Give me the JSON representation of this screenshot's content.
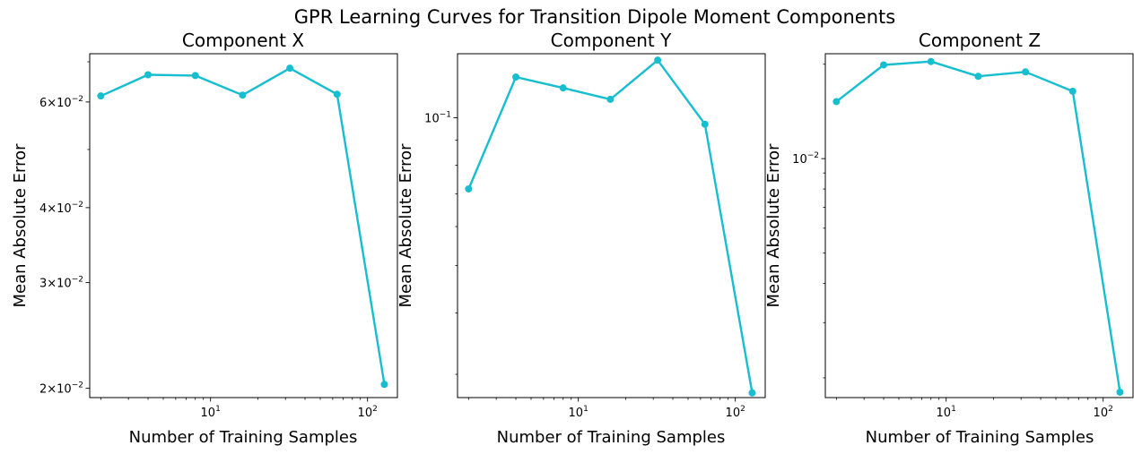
{
  "figure": {
    "title": "GPR Learning Curves for Transition Dipole Moment Components",
    "color": "#17becf"
  },
  "chart_data": [
    {
      "type": "line",
      "title": "Component X",
      "xlabel": "Number of Training Samples",
      "ylabel": "Mean Absolute Error",
      "xscale": "log",
      "yscale": "log",
      "grid": false,
      "legend": "none",
      "xlim": [
        1.7,
        155
      ],
      "ylim": [
        0.0193,
        0.0722
      ],
      "x_ticks": [
        {
          "value": 10,
          "base": "10",
          "exp": "1"
        },
        {
          "value": 100,
          "base": "10",
          "exp": "2"
        }
      ],
      "y_ticks": [
        {
          "value": 0.02,
          "mant": "2",
          "base": "10",
          "exp": "−2"
        },
        {
          "value": 0.03,
          "mant": "3",
          "base": "10",
          "exp": "−2"
        },
        {
          "value": 0.04,
          "mant": "4",
          "base": "10",
          "exp": "−2"
        },
        {
          "value": 0.06,
          "mant": "6",
          "base": "10",
          "exp": "−2"
        }
      ],
      "series": [
        {
          "x": [
            2,
            4,
            8,
            16,
            32,
            64,
            128
          ],
          "y": [
            0.0614,
            0.0666,
            0.0664,
            0.0616,
            0.0683,
            0.0618,
            0.0203
          ]
        }
      ]
    },
    {
      "type": "line",
      "title": "Component Y",
      "xlabel": "Number of Training Samples",
      "ylabel": "Mean Absolute Error",
      "xscale": "log",
      "yscale": "log",
      "grid": false,
      "legend": "none",
      "xlim": [
        1.7,
        155
      ],
      "ylim": [
        0.0269,
        0.135
      ],
      "x_ticks": [
        {
          "value": 10,
          "base": "10",
          "exp": "1"
        },
        {
          "value": 100,
          "base": "10",
          "exp": "2"
        }
      ],
      "y_ticks": [
        {
          "value": 0.1,
          "mant": "",
          "base": "10",
          "exp": "−1"
        }
      ],
      "series": [
        {
          "x": [
            2,
            4,
            8,
            16,
            32,
            64,
            128
          ],
          "y": [
            0.0716,
            0.121,
            0.115,
            0.109,
            0.131,
            0.097,
            0.0275
          ]
        }
      ]
    },
    {
      "type": "line",
      "title": "Component Z",
      "xlabel": "Number of Training Samples",
      "ylabel": "Mean Absolute Error",
      "xscale": "log",
      "yscale": "log",
      "grid": false,
      "legend": "none",
      "xlim": [
        1.7,
        155
      ],
      "ylim": [
        0.00173,
        0.0216
      ],
      "x_ticks": [
        {
          "value": 10,
          "base": "10",
          "exp": "1"
        },
        {
          "value": 100,
          "base": "10",
          "exp": "2"
        }
      ],
      "y_ticks": [
        {
          "value": 0.01,
          "mant": "",
          "base": "10",
          "exp": "−2"
        }
      ],
      "series": [
        {
          "x": [
            2,
            4,
            8,
            16,
            32,
            64,
            128
          ],
          "y": [
            0.0152,
            0.0199,
            0.0204,
            0.0183,
            0.0189,
            0.0164,
            0.0018
          ]
        }
      ]
    }
  ]
}
